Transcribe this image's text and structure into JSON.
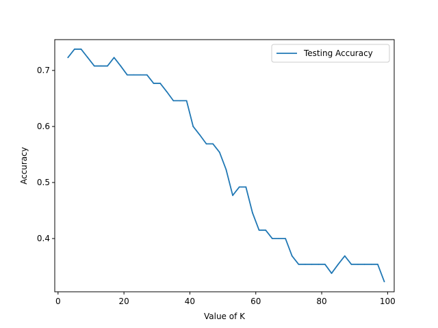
{
  "chart_data": {
    "type": "line",
    "title": "",
    "xlabel": "Value of K",
    "ylabel": "Accuracy",
    "xlim": [
      -1,
      102
    ],
    "ylim": [
      0.305,
      0.755
    ],
    "xticks": [
      0,
      20,
      40,
      60,
      80,
      100
    ],
    "xtick_labels": [
      "0",
      "20",
      "40",
      "60",
      "80",
      "100"
    ],
    "yticks": [
      0.4,
      0.5,
      0.6,
      0.7
    ],
    "ytick_labels": [
      "0.4",
      "0.5",
      "0.6",
      "0.7"
    ],
    "grid": false,
    "legend_position": "top-right",
    "series": [
      {
        "name": "Testing Accuracy",
        "color": "#1f77b4",
        "x": [
          3,
          5,
          7,
          9,
          11,
          13,
          15,
          17,
          19,
          21,
          23,
          25,
          27,
          29,
          31,
          33,
          35,
          37,
          39,
          41,
          43,
          45,
          47,
          49,
          51,
          53,
          55,
          57,
          59,
          61,
          63,
          65,
          67,
          69,
          71,
          73,
          75,
          77,
          79,
          81,
          83,
          85,
          87,
          89,
          91,
          93,
          95,
          97,
          99
        ],
        "y": [
          0.723,
          0.738,
          0.738,
          0.723,
          0.708,
          0.708,
          0.708,
          0.723,
          0.708,
          0.692,
          0.692,
          0.692,
          0.692,
          0.677,
          0.677,
          0.662,
          0.646,
          0.646,
          0.646,
          0.6,
          0.585,
          0.569,
          0.569,
          0.554,
          0.523,
          0.477,
          0.492,
          0.492,
          0.446,
          0.415,
          0.415,
          0.4,
          0.4,
          0.4,
          0.369,
          0.354,
          0.354,
          0.354,
          0.354,
          0.354,
          0.338,
          0.354,
          0.369,
          0.354,
          0.354,
          0.354,
          0.354,
          0.354,
          0.323
        ]
      }
    ]
  }
}
